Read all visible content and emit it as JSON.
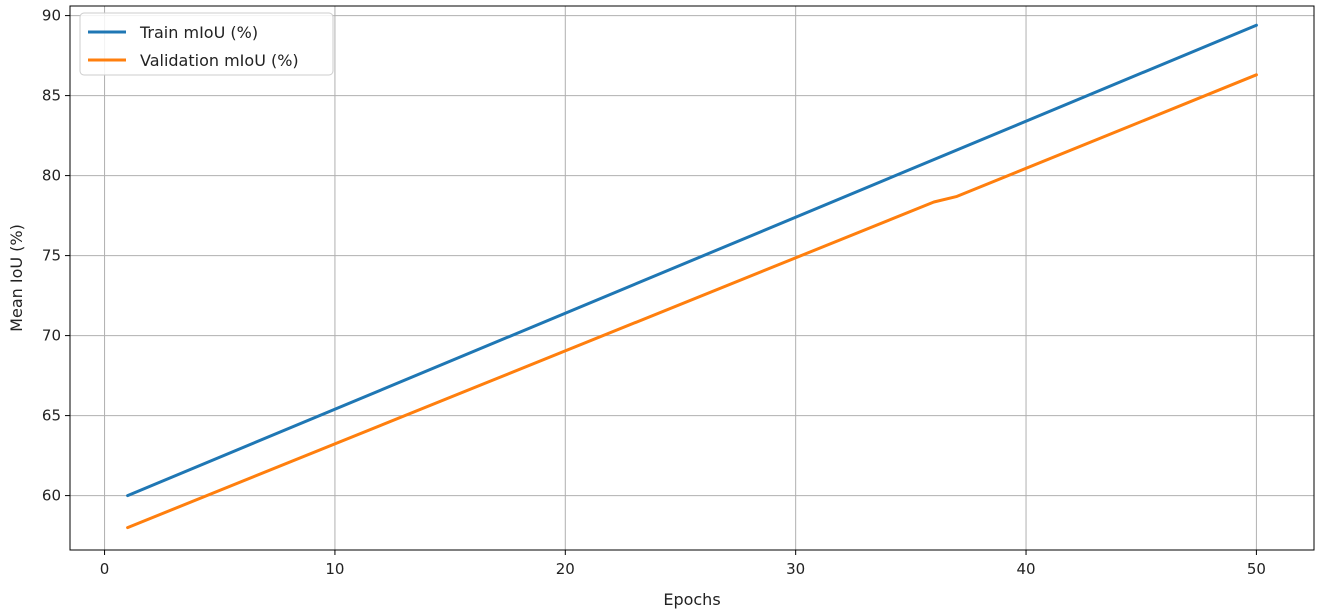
{
  "chart_data": {
    "type": "line",
    "title": "",
    "xlabel": "Epochs",
    "ylabel": "Mean IoU (%)",
    "xlim": [
      -1.5,
      52.5
    ],
    "ylim": [
      56.6,
      90.6
    ],
    "xticks": [
      0,
      10,
      20,
      30,
      40,
      50
    ],
    "yticks": [
      60,
      65,
      70,
      75,
      80,
      85,
      90
    ],
    "grid": true,
    "legend_position": "top-left",
    "series": [
      {
        "name": "Train mIoU (%)",
        "color": "#1f77b4",
        "points": [
          [
            1,
            60.0
          ],
          [
            50,
            89.4
          ]
        ]
      },
      {
        "name": "Validation mIoU (%)",
        "color": "#ff7f0e",
        "points": [
          [
            1,
            58.0
          ],
          [
            36,
            78.35
          ],
          [
            37,
            78.7
          ],
          [
            50,
            86.3
          ]
        ]
      }
    ]
  }
}
